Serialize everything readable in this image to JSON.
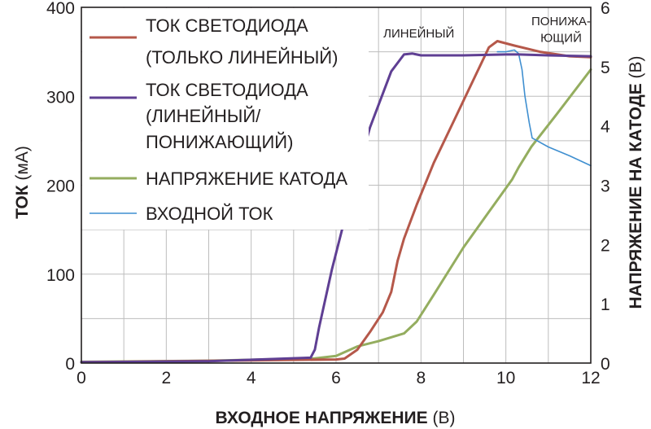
{
  "chart_data": {
    "type": "line",
    "xlabel": {
      "text": "ВХОДНОЕ НАПРЯЖЕНИЕ",
      "unit": "(В)"
    },
    "ylabel_left": {
      "text": "ТОК",
      "unit": "(мА)"
    },
    "ylabel_right": {
      "text": "НАПРЯЖЕНИЕ НА КАТОДЕ",
      "unit": "(В)"
    },
    "xlim": [
      0,
      12
    ],
    "ylim_left": [
      0,
      400
    ],
    "ylim_right": [
      0,
      6
    ],
    "x_ticks": [
      "0",
      "2",
      "4",
      "6",
      "8",
      "10",
      "12"
    ],
    "y_ticks_left": [
      "0",
      "100",
      "200",
      "300",
      "400"
    ],
    "y_ticks_right": [
      "0",
      "1",
      "2",
      "3",
      "4",
      "5",
      "6"
    ],
    "grid": true,
    "annotations": [
      {
        "text": "ЛИНЕЙНЫЙ",
        "x": 7.95,
        "y": 366
      },
      {
        "text": "ПОНИЖА-",
        "x": 11.3,
        "y": 380
      },
      {
        "text": "ЮЩИЙ",
        "x": 11.3,
        "y": 361
      }
    ],
    "legend": {
      "placement": "top-left",
      "entries": [
        {
          "series": 0,
          "lines": [
            "ТОК СВЕТОДИОДА",
            "(ТОЛЬКО ЛИНЕЙНЫЙ)"
          ]
        },
        {
          "series": 1,
          "lines": [
            "ТОК СВЕТОДИОДА",
            "(ЛИНЕЙНЫЙ/",
            "ПОНИЖАЮЩИЙ)"
          ]
        },
        {
          "series": 2,
          "lines": [
            "НАПРЯЖЕНИЕ КАТОДА"
          ]
        },
        {
          "series": 3,
          "lines": [
            "ВХОДНОЙ ТОК"
          ]
        }
      ]
    },
    "series": [
      {
        "name": "ТОК СВЕТОДИОДА (ТОЛЬКО ЛИНЕЙНЫЙ)",
        "axis": "left",
        "color": "#b5584a",
        "width": 3,
        "x": [
          0,
          4,
          6.0,
          6.2,
          6.5,
          6.8,
          7.1,
          7.3,
          7.45,
          7.6,
          7.9,
          8.3,
          8.8,
          9.3,
          9.6,
          9.8,
          10.2,
          10.8,
          11.5,
          12.0
        ],
        "y": [
          1,
          3,
          4,
          5,
          15,
          35,
          57,
          80,
          115,
          140,
          178,
          225,
          275,
          325,
          355,
          362,
          357,
          350,
          345,
          344
        ]
      },
      {
        "name": "ТОК СВЕТОДИОДА (ЛИНЕЙНЫЙ/ПОНИЖАЮЩИЙ)",
        "axis": "left",
        "color": "#5f3f93",
        "width": 3,
        "x": [
          0,
          3,
          5.4,
          5.5,
          5.6,
          5.9,
          6.3,
          6.8,
          7.3,
          7.6,
          7.8,
          8.0,
          9,
          10,
          10.3,
          11,
          12
        ],
        "y": [
          1,
          2,
          6,
          15,
          40,
          105,
          180,
          265,
          328,
          347,
          348,
          346,
          346,
          347,
          347,
          346,
          345
        ]
      },
      {
        "name": "НАПРЯЖЕНИЕ КАТОДА",
        "axis": "right",
        "color": "#94ad5f",
        "width": 3,
        "x": [
          0,
          3,
          5.5,
          6.0,
          6.5,
          7.0,
          7.6,
          7.9,
          8.3,
          9.0,
          9.6,
          10.0,
          10.15,
          10.3,
          10.6,
          11.2,
          12.0
        ],
        "y": [
          0.02,
          0.04,
          0.08,
          0.12,
          0.28,
          0.37,
          0.5,
          0.7,
          1.15,
          1.95,
          2.55,
          2.95,
          3.1,
          3.3,
          3.65,
          4.2,
          4.95
        ]
      },
      {
        "name": "ВХОДНОЙ ТОК",
        "axis": "left",
        "color": "#3f8fd0",
        "width": 1.6,
        "x": [
          9.8,
          10.0,
          10.2,
          10.3,
          10.38,
          10.45,
          10.55,
          10.62,
          11.0,
          11.5,
          12.0
        ],
        "y": [
          350,
          350,
          352,
          348,
          330,
          300,
          270,
          253,
          243,
          233,
          222
        ]
      }
    ]
  }
}
